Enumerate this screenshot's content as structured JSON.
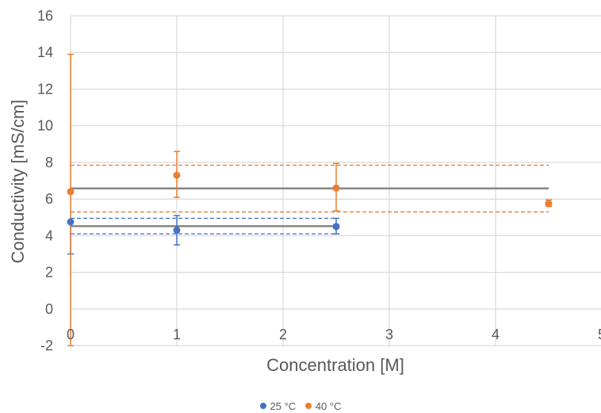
{
  "chart_data": {
    "type": "scatter",
    "title": "",
    "xlabel": "Concentration [M]",
    "ylabel": "Conductivity [mS/cm]",
    "xlim": [
      0,
      5
    ],
    "ylim": [
      -2,
      16
    ],
    "x_ticks": [
      "0",
      "1",
      "2",
      "3",
      "4",
      "5"
    ],
    "y_ticks": [
      "-2",
      "0",
      "2",
      "4",
      "6",
      "8",
      "10",
      "12",
      "14",
      "16"
    ],
    "grid": true,
    "legend_position": "bottom",
    "series": [
      {
        "name": "25 °C",
        "color": "#4472C4",
        "points": [
          {
            "x": 0,
            "y": 4.75,
            "err_low": 3.0,
            "err_high": 4.75
          },
          {
            "x": 1,
            "y": 4.3,
            "err_low": 3.5,
            "err_high": 5.1
          },
          {
            "x": 2.5,
            "y": 4.5,
            "err_low": 4.1,
            "err_high": 4.95
          }
        ],
        "mean_line": {
          "y": 4.52,
          "x_start": 0,
          "x_end": 2.5,
          "color": "#808080"
        },
        "bound_lines": [
          {
            "y": 4.95,
            "x_start": 0,
            "x_end": 2.5
          },
          {
            "y": 4.1,
            "x_start": 0,
            "x_end": 2.5
          }
        ]
      },
      {
        "name": "40 °C",
        "color": "#ED7D31",
        "points": [
          {
            "x": 0,
            "y": 6.4,
            "err_low": -2.0,
            "err_high": 13.9
          },
          {
            "x": 1,
            "y": 7.3,
            "err_low": 6.1,
            "err_high": 8.6
          },
          {
            "x": 2.5,
            "y": 6.6,
            "err_low": 5.35,
            "err_high": 7.95
          },
          {
            "x": 4.5,
            "y": 5.75,
            "err_low": 5.6,
            "err_high": 5.95
          }
        ],
        "mean_line": {
          "y": 6.58,
          "x_start": 0,
          "x_end": 4.5,
          "color": "#808080"
        },
        "bound_lines": [
          {
            "y": 7.85,
            "x_start": 0,
            "x_end": 4.5
          },
          {
            "y": 5.3,
            "x_start": 0,
            "x_end": 4.5
          }
        ]
      }
    ]
  },
  "legend": {
    "items": [
      {
        "label": "25 °C",
        "color": "#4472C4"
      },
      {
        "label": "40 °C",
        "color": "#ED7D31"
      }
    ]
  }
}
